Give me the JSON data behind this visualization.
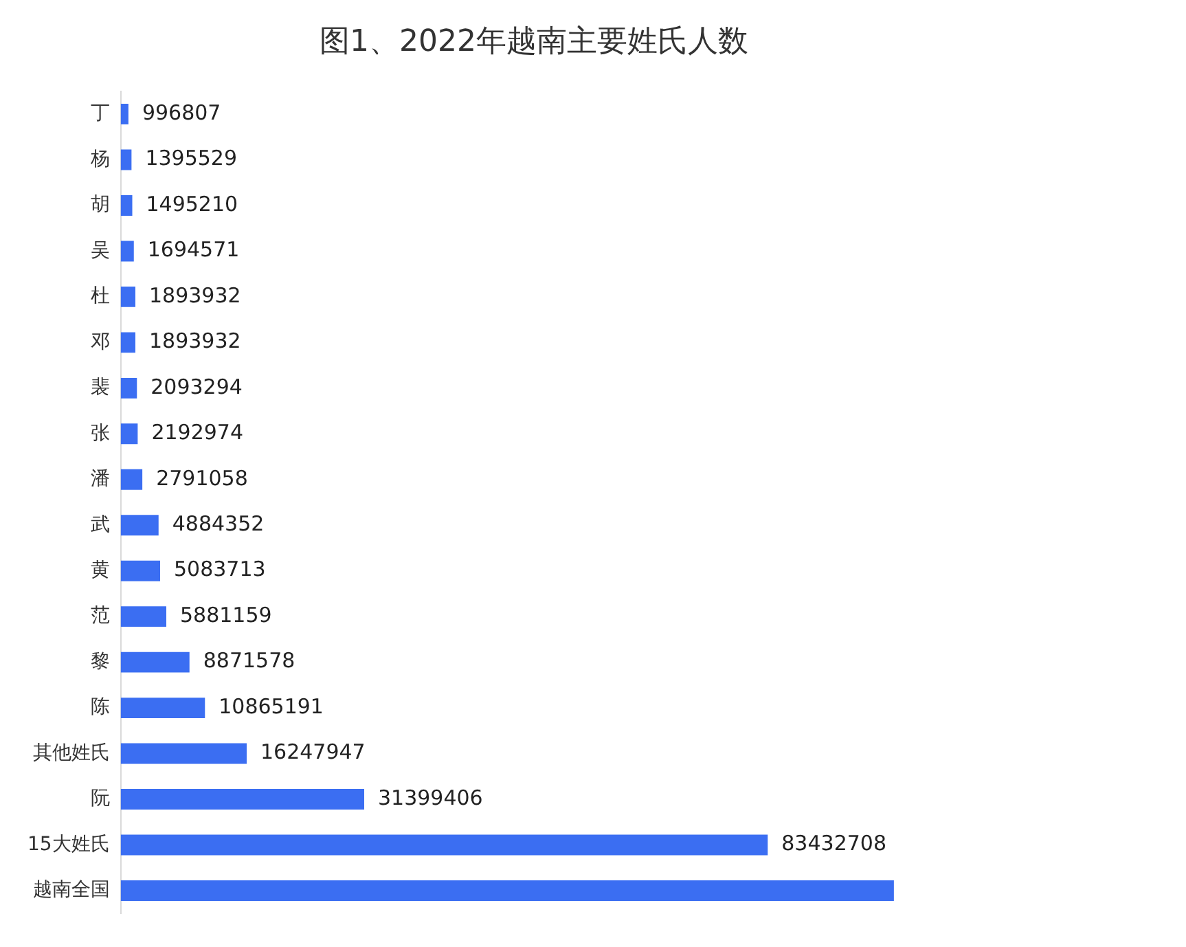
{
  "chart_data": {
    "type": "bar",
    "orientation": "horizontal",
    "title": "图1、2022年越南主要姓氏人数",
    "categories": [
      "丁",
      "杨",
      "胡",
      "吴",
      "杜",
      "邓",
      "裴",
      "张",
      "潘",
      "武",
      "黄",
      "范",
      "黎",
      "陈",
      "其他姓氏",
      "阮",
      "15大姓氏",
      "越南全国"
    ],
    "values": [
      996807,
      1395529,
      1495210,
      1694571,
      1893932,
      1893932,
      2093294,
      2192974,
      2791058,
      4884352,
      5083713,
      5881159,
      8871578,
      10865191,
      16247947,
      31399406,
      83432708,
      99700000
    ],
    "value_labels": [
      "996807",
      "1395529",
      "1495210",
      "1694571",
      "1893932",
      "1893932",
      "2093294",
      "2192974",
      "2791058",
      "4884352",
      "5083713",
      "5881159",
      "8871578",
      "10865191",
      "16247947",
      "31399406",
      "83432708",
      null
    ],
    "color": "#3b6ef2",
    "tick_labels": "y",
    "grid": false,
    "legend": false
  }
}
